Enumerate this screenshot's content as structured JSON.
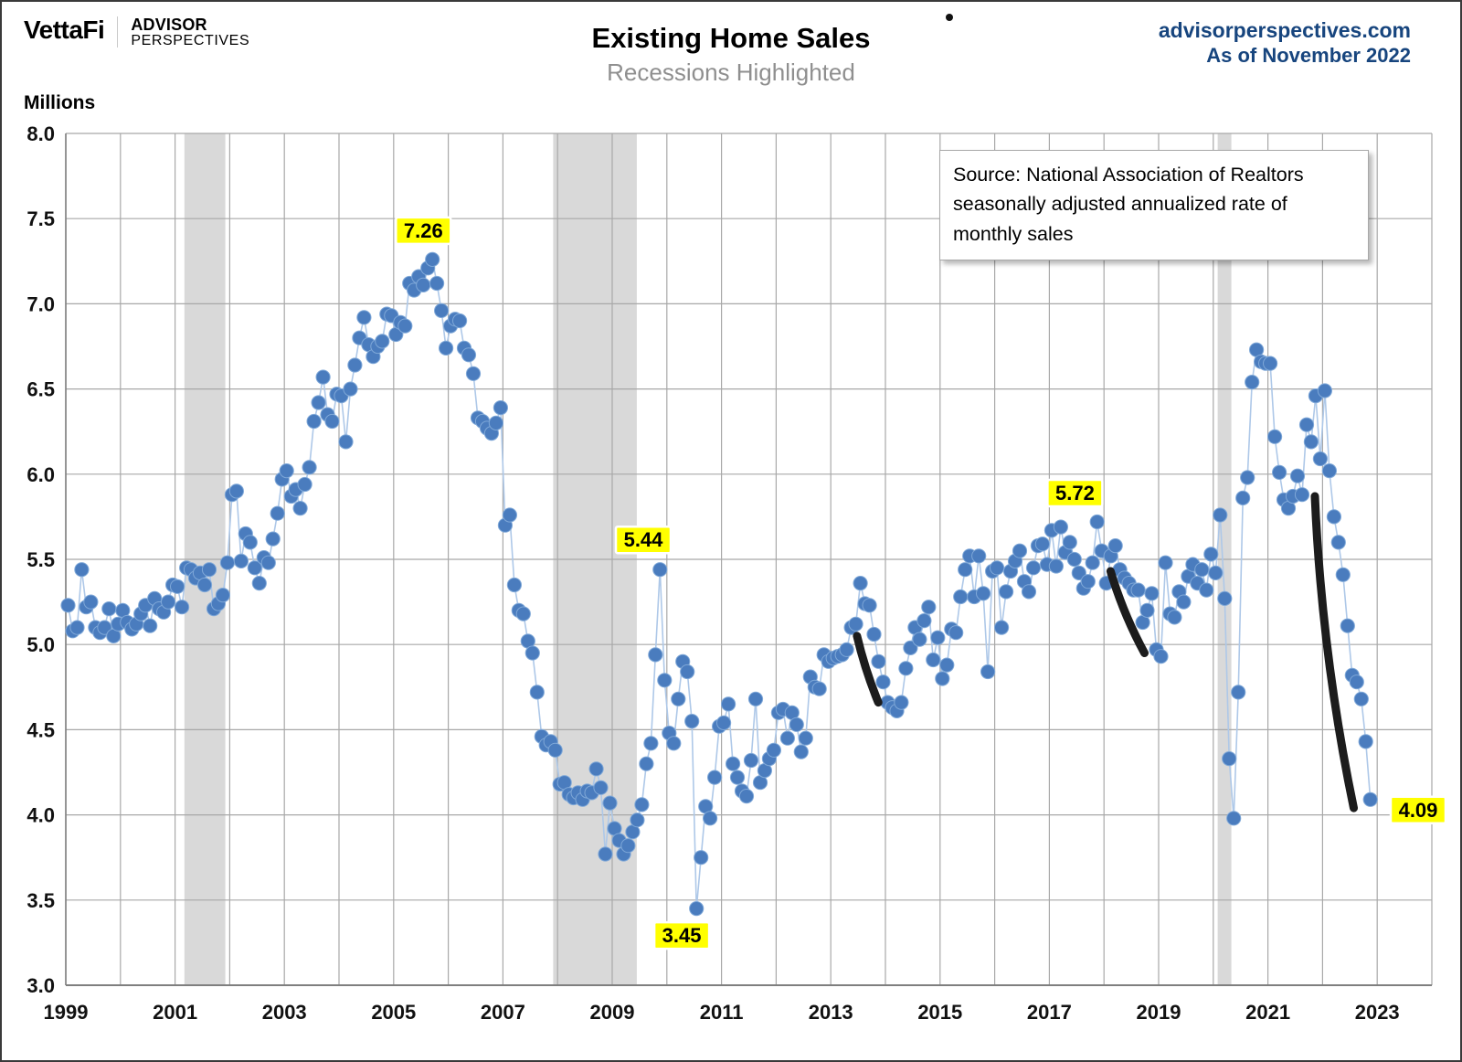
{
  "logo": {
    "vettafi": "VettaFi",
    "advisor_line1": "ADVISOR",
    "advisor_line2": "PERSPECTIVES"
  },
  "header": {
    "title": "Existing Home Sales",
    "subtitle": "Recessions Highlighted",
    "site": "advisorperspectives.com",
    "as_of": "As of November 2022"
  },
  "axis": {
    "unit_label": "Millions"
  },
  "source_box": {
    "text": "Source: National Association of Realtors seasonally adjusted annualized rate of monthly sales"
  },
  "chart_data": {
    "type": "scatter",
    "title": "Existing Home Sales",
    "subtitle": "Recessions Highlighted",
    "ylabel": "Millions",
    "ylim": [
      3.0,
      8.0
    ],
    "xlim": [
      1999,
      2024
    ],
    "y_ticks": [
      "8.0",
      "7.5",
      "7.0",
      "6.5",
      "6.0",
      "5.5",
      "5.0",
      "4.5",
      "4.0",
      "3.5",
      "3.0"
    ],
    "x_ticks": [
      1999,
      2001,
      2003,
      2005,
      2007,
      2009,
      2011,
      2013,
      2015,
      2017,
      2019,
      2021,
      2023
    ],
    "grid": "on",
    "start_year": 1999,
    "start_month": 1,
    "end_label": "November 2022",
    "values": [
      5.23,
      5.08,
      5.1,
      5.44,
      5.22,
      5.25,
      5.1,
      5.07,
      5.1,
      5.21,
      5.05,
      5.12,
      5.2,
      5.13,
      5.09,
      5.12,
      5.18,
      5.23,
      5.11,
      5.27,
      5.21,
      5.19,
      5.25,
      5.35,
      5.34,
      5.22,
      5.45,
      5.44,
      5.39,
      5.42,
      5.35,
      5.44,
      5.21,
      5.24,
      5.29,
      5.48,
      5.88,
      5.9,
      5.49,
      5.65,
      5.6,
      5.45,
      5.36,
      5.51,
      5.48,
      5.62,
      5.77,
      5.97,
      6.02,
      5.87,
      5.91,
      5.8,
      5.94,
      6.04,
      6.31,
      6.42,
      6.57,
      6.35,
      6.31,
      6.47,
      6.46,
      6.19,
      6.5,
      6.64,
      6.8,
      6.92,
      6.76,
      6.69,
      6.75,
      6.78,
      6.94,
      6.93,
      6.82,
      6.89,
      6.87,
      7.12,
      7.08,
      7.16,
      7.11,
      7.21,
      7.26,
      7.12,
      6.96,
      6.74,
      6.87,
      6.91,
      6.9,
      6.74,
      6.7,
      6.59,
      6.33,
      6.31,
      6.27,
      6.24,
      6.3,
      6.39,
      5.7,
      5.76,
      5.35,
      5.2,
      5.18,
      5.02,
      4.95,
      4.72,
      4.46,
      4.41,
      4.43,
      4.38,
      4.18,
      4.19,
      4.12,
      4.1,
      4.13,
      4.09,
      4.14,
      4.13,
      4.27,
      4.16,
      3.77,
      4.07,
      3.92,
      3.85,
      3.77,
      3.82,
      3.9,
      3.97,
      4.06,
      4.3,
      4.42,
      4.94,
      5.44,
      4.79,
      4.48,
      4.42,
      4.68,
      4.9,
      4.84,
      4.55,
      3.45,
      3.75,
      4.05,
      3.98,
      4.22,
      4.52,
      4.54,
      4.65,
      4.3,
      4.22,
      4.14,
      4.11,
      4.32,
      4.68,
      4.19,
      4.26,
      4.33,
      4.38,
      4.6,
      4.62,
      4.45,
      4.6,
      4.53,
      4.37,
      4.45,
      4.81,
      4.75,
      4.74,
      4.94,
      4.9,
      4.92,
      4.93,
      4.94,
      4.97,
      5.1,
      5.12,
      5.36,
      5.24,
      5.23,
      5.06,
      4.9,
      4.78,
      4.66,
      4.63,
      4.61,
      4.66,
      4.86,
      4.98,
      5.1,
      5.03,
      5.14,
      5.22,
      4.91,
      5.04,
      4.8,
      4.88,
      5.09,
      5.07,
      5.28,
      5.44,
      5.52,
      5.28,
      5.52,
      5.3,
      4.84,
      5.43,
      5.45,
      5.1,
      5.31,
      5.43,
      5.49,
      5.55,
      5.37,
      5.31,
      5.45,
      5.58,
      5.59,
      5.47,
      5.67,
      5.46,
      5.69,
      5.54,
      5.6,
      5.5,
      5.42,
      5.33,
      5.37,
      5.48,
      5.72,
      5.55,
      5.36,
      5.52,
      5.58,
      5.44,
      5.39,
      5.36,
      5.32,
      5.32,
      5.13,
      5.2,
      5.3,
      4.97,
      4.93,
      5.48,
      5.18,
      5.16,
      5.31,
      5.25,
      5.4,
      5.47,
      5.36,
      5.44,
      5.32,
      5.53,
      5.42,
      5.76,
      5.27,
      4.33,
      3.98,
      4.72,
      5.86,
      5.98,
      6.54,
      6.73,
      6.66,
      6.65,
      6.65,
      6.22,
      6.01,
      5.85,
      5.8,
      5.87,
      5.99,
      5.88,
      6.29,
      6.19,
      6.46,
      6.09,
      6.49,
      6.02,
      5.75,
      5.6,
      5.41,
      5.11,
      4.82,
      4.78,
      4.68,
      4.43,
      4.09
    ],
    "recessions": [
      {
        "start": 2001.17,
        "end": 2001.92
      },
      {
        "start": 2007.92,
        "end": 2009.45
      },
      {
        "start": 2020.08,
        "end": 2020.33
      }
    ],
    "annotations": [
      {
        "text": "7.26",
        "x": 2005.71,
        "v": 7.26,
        "ox": -10,
        "oy": -31
      },
      {
        "text": "5.44",
        "x": 2009.87,
        "v": 5.44,
        "ox": -18,
        "oy": -32
      },
      {
        "text": "3.45",
        "x": 2010.54,
        "v": 3.45,
        "ox": -16,
        "oy": 30
      },
      {
        "text": "5.72",
        "x": 2017.87,
        "v": 5.72,
        "ox": -24,
        "oy": -31
      },
      {
        "text": "4.09",
        "x": 2022.88,
        "v": 4.09,
        "ox": 52,
        "oy": 12
      }
    ],
    "trend_segments": [
      {
        "x1": 2013.48,
        "v1": 5.05,
        "x2": 2013.87,
        "v2": 4.66,
        "bend": 3
      },
      {
        "x1": 2018.12,
        "v1": 5.43,
        "x2": 2018.74,
        "v2": 4.95,
        "bend": 5
      },
      {
        "x1": 2021.86,
        "v1": 5.87,
        "x2": 2022.57,
        "v2": 4.04,
        "bend": 14
      }
    ],
    "colors": {
      "marker_fill": "#4a7cbe",
      "marker_edge": "#7fa8d8",
      "connector": "#aec8e8",
      "trend": "#1c1c1c",
      "grid": "#a8a8a8",
      "spine": "#7f7f7f",
      "recession_band": "#d9d9d9",
      "annotation_highlight": "#ffff00",
      "header_accent": "#17457e"
    }
  }
}
